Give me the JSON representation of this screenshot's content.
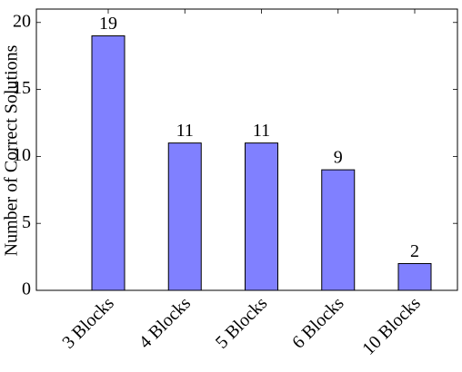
{
  "chart_data": {
    "type": "bar",
    "ylabel": "Number of Correct Solutions",
    "categories": [
      "3 Blocks",
      "4 Blocks",
      "5 Blocks",
      "6 Blocks",
      "10 Blocks"
    ],
    "values": [
      19,
      11,
      11,
      9,
      2
    ],
    "color": "#8080ff",
    "ylim": [
      0,
      21
    ],
    "yticks": [
      0,
      5,
      10,
      15,
      20
    ],
    "grid": false,
    "value_labels_shown": true
  }
}
